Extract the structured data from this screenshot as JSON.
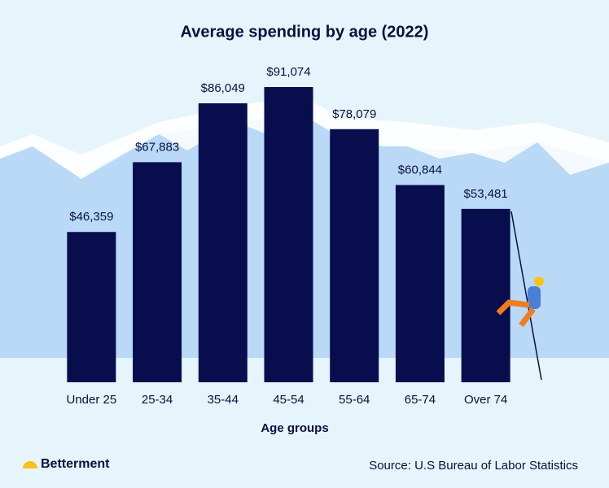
{
  "chart_data": {
    "type": "bar",
    "title": "Average spending by age (2022)",
    "x_label": "Age groups",
    "categories": [
      "Under 25",
      "25-34",
      "35-44",
      "45-54",
      "55-64",
      "65-74",
      "Over 74"
    ],
    "values": [
      46359,
      67883,
      86049,
      91074,
      78079,
      60844,
      53481
    ],
    "value_labels": [
      "$46,359",
      "$67,883",
      "$86,049",
      "$91,074",
      "$78,079",
      "$60,844",
      "$53,481"
    ],
    "color": "#070d4d"
  },
  "brand": "Betterment",
  "source": "Source: U.S Bureau of Labor Statistics"
}
